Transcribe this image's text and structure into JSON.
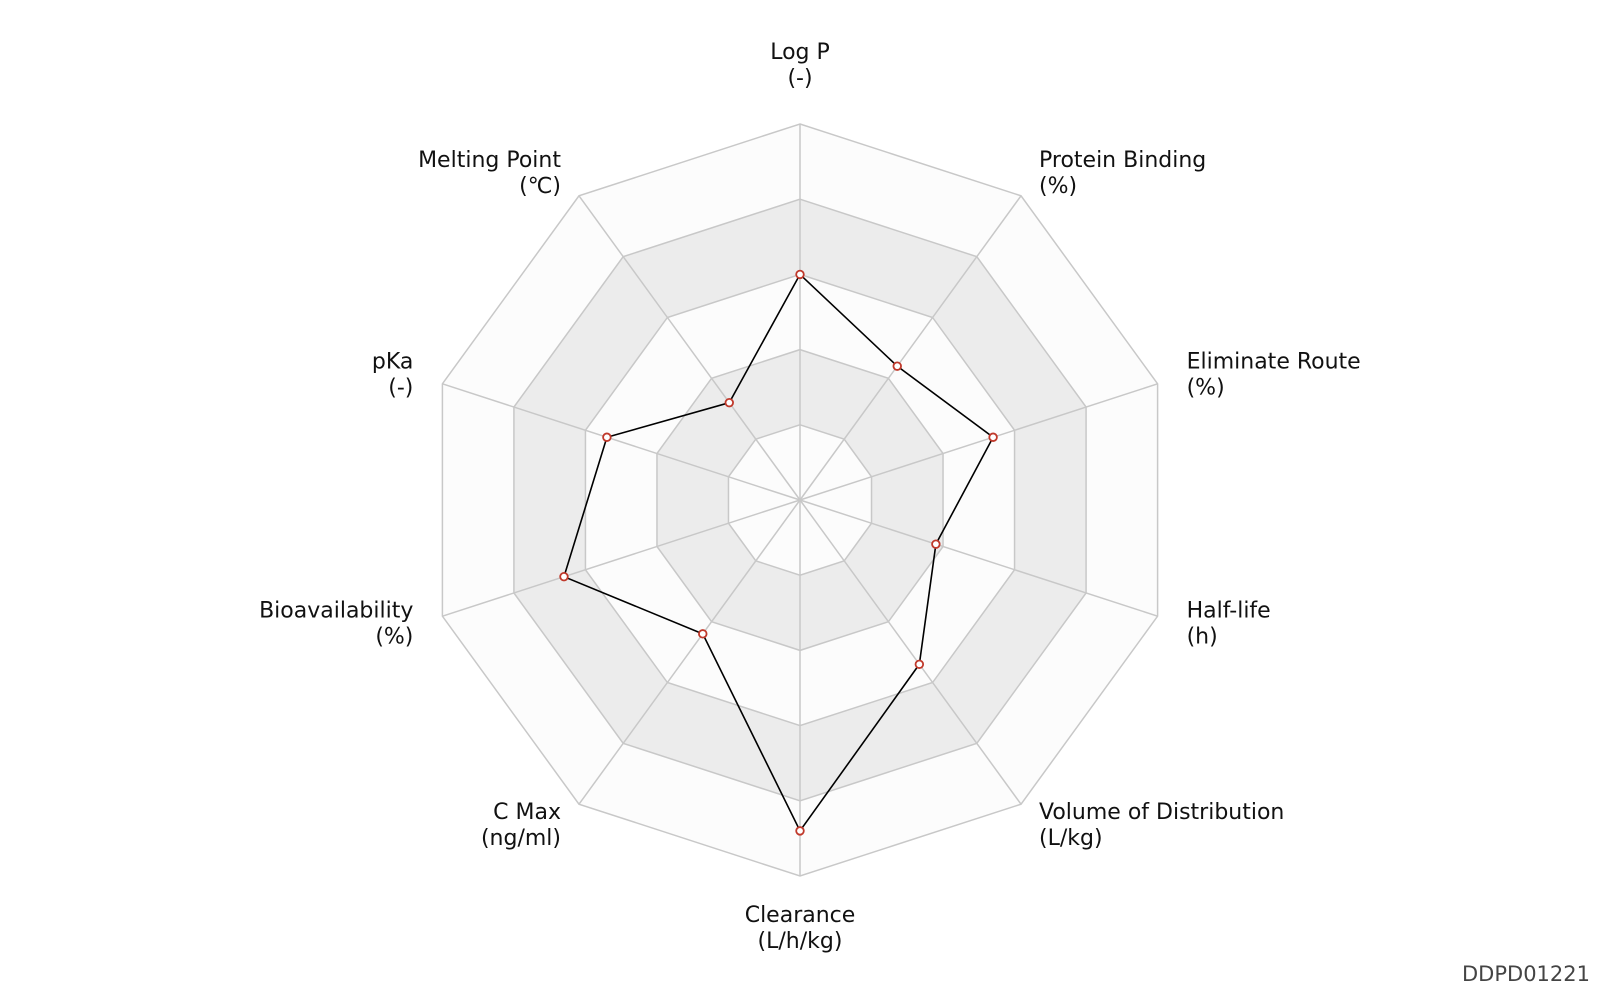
{
  "chart_data": {
    "type": "radar",
    "axes": [
      {
        "label": "Log P",
        "unit": "(-)"
      },
      {
        "label": "Protein Binding",
        "unit": "(%)"
      },
      {
        "label": "Eliminate Route",
        "unit": "(%)"
      },
      {
        "label": "Half-life",
        "unit": "(h)"
      },
      {
        "label": "Volume of Distribution",
        "unit": "(L/kg)"
      },
      {
        "label": "Clearance",
        "unit": "(L/h/kg)"
      },
      {
        "label": "C Max",
        "unit": "(ng/ml)"
      },
      {
        "label": "Bioavailability",
        "unit": "(%)"
      },
      {
        "label": "pKa",
        "unit": "(-)"
      },
      {
        "label": "Melting Point",
        "unit": "(℃)"
      }
    ],
    "values": [
      3.0,
      2.2,
      2.7,
      1.9,
      2.7,
      4.4,
      2.2,
      3.3,
      2.7,
      1.6
    ],
    "rlim": [
      0,
      5
    ],
    "rticks": [
      1,
      2,
      3,
      4,
      5
    ],
    "line_color": "#000000",
    "marker_color": "#c0392b",
    "band_colors": [
      "#fcfcfc",
      "#ececec"
    ],
    "grid_color": "#c8c8c8"
  },
  "watermark": "DDPD01221"
}
